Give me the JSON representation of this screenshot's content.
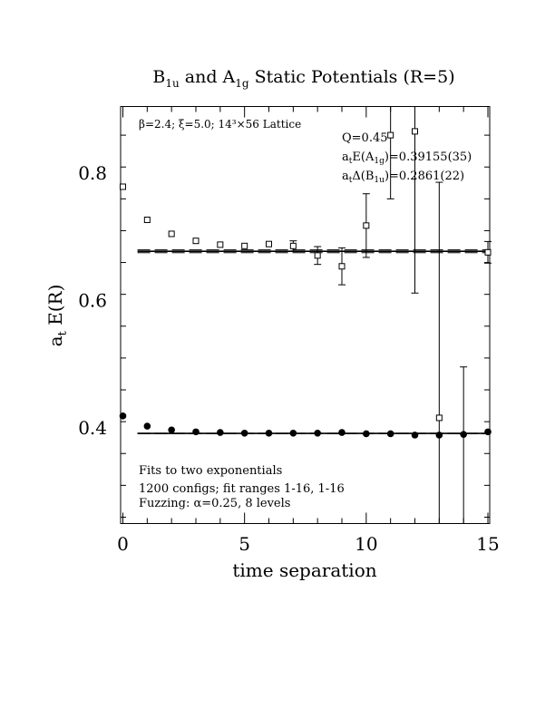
{
  "chart_data": {
    "type": "scatter",
    "title": "B₁ᵤ and A₁g Static Potentials (R=5)",
    "title_parts": {
      "b": "B",
      "b_sub": "1u",
      "mid": " and A",
      "a_sub": "1g",
      "tail": " Static Potentials (R=5)"
    },
    "xlabel": "time separation",
    "ylabel_parts": {
      "a": "a",
      "a_sub": "t",
      "rest": " E(R)"
    },
    "xlim": [
      0,
      15
    ],
    "ylim": [
      0.25,
      0.905
    ],
    "x_ticks": [
      "0",
      "5",
      "10",
      "15"
    ],
    "y_ticks": [
      "0.4",
      "0.6",
      "0.8"
    ],
    "x_tick_values": [
      0,
      5,
      10,
      15
    ],
    "y_tick_values": [
      0.4,
      0.6,
      0.8
    ],
    "annotations": {
      "lattice": "β=2.4; ξ=5.0; 14³×56 Lattice",
      "q": "Q=0.45",
      "ea_prefix": "a",
      "ea_sub1": "t",
      "ea_mid": "E(A",
      "ea_sub2": "1g",
      "ea_value": ")=0.39155(35)",
      "db_prefix": "a",
      "db_sub1": "t",
      "db_mid": "Δ(B",
      "db_sub2": "1u",
      "db_value": ")=0.2861(22)",
      "fits": "Fits to two exponentials",
      "configs": "1200 configs; fit ranges 1-16, 1-16",
      "fuzzing": "Fuzzing: α=0.25, 8 levels"
    },
    "series": [
      {
        "marker": "filled-circle",
        "points": [
          {
            "x": 0,
            "y": 0.419
          },
          {
            "x": 1,
            "y": 0.403
          },
          {
            "x": 2,
            "y": 0.397
          },
          {
            "x": 3,
            "y": 0.394
          },
          {
            "x": 4,
            "y": 0.393
          },
          {
            "x": 5,
            "y": 0.392
          },
          {
            "x": 6,
            "y": 0.392
          },
          {
            "x": 7,
            "y": 0.392
          },
          {
            "x": 8,
            "y": 0.392
          },
          {
            "x": 9,
            "y": 0.393
          },
          {
            "x": 10,
            "y": 0.391
          },
          {
            "x": 11,
            "y": 0.391
          },
          {
            "x": 12,
            "y": 0.389
          },
          {
            "x": 13,
            "y": 0.389
          },
          {
            "x": 14,
            "y": 0.39
          },
          {
            "x": 15,
            "y": 0.394
          }
        ],
        "fit": {
          "x_range": [
            0.6,
            15
          ],
          "value": 0.39155,
          "error": 0.00035
        }
      },
      {
        "marker": "open-square",
        "points": [
          {
            "x": 0,
            "y": 0.779
          },
          {
            "x": 1,
            "y": 0.727
          },
          {
            "x": 2,
            "y": 0.705
          },
          {
            "x": 3,
            "y": 0.694
          },
          {
            "x": 4,
            "y": 0.688
          },
          {
            "x": 5,
            "y": 0.686
          },
          {
            "x": 6,
            "y": 0.689
          },
          {
            "x": 7,
            "y": 0.686,
            "err": 0.008
          },
          {
            "x": 8,
            "y": 0.671,
            "err": 0.014
          },
          {
            "x": 9,
            "y": 0.654,
            "err": 0.029
          },
          {
            "x": 10,
            "y": 0.718,
            "err": 0.05
          },
          {
            "x": 11,
            "y": 0.86,
            "err": 0.1
          },
          {
            "x": 12,
            "y": 0.866,
            "err": 0.254
          },
          {
            "x": 13,
            "y": 0.416,
            "err": 0.37
          },
          {
            "x": 15,
            "y": 0.676,
            "err": 0.017
          }
        ],
        "fit": {
          "x_range": [
            0.6,
            15
          ],
          "value": 0.67765,
          "error": 0.0022
        }
      }
    ],
    "extra_errorbars": [
      {
        "x": 14,
        "y_low": 0.25,
        "y_high": 0.496
      }
    ]
  }
}
